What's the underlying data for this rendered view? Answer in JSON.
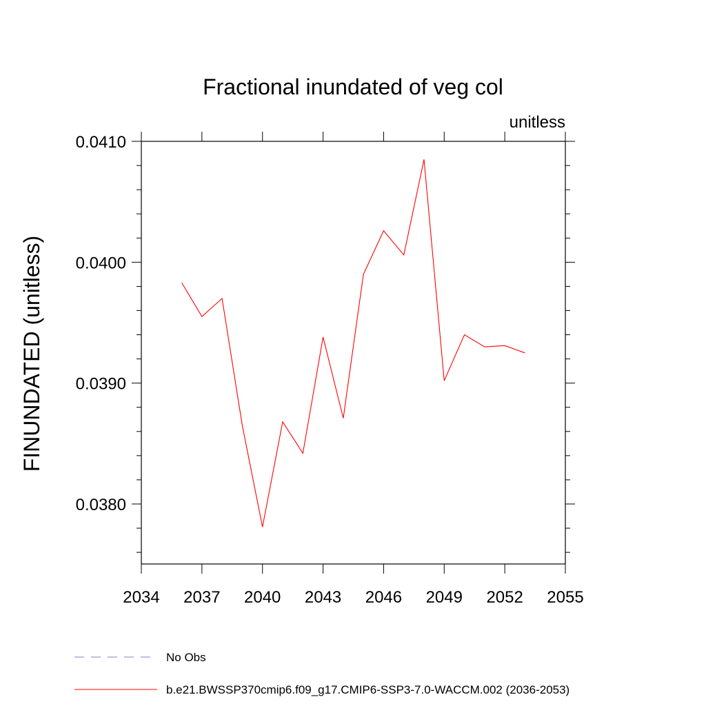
{
  "chart_data": {
    "type": "line",
    "title": "Fractional inundated of veg col",
    "units_label": "unitless",
    "xlabel": "",
    "ylabel": "FINUNDATED  (unitless)",
    "xlim": [
      2034,
      2055
    ],
    "ylim": [
      0.0375,
      0.0411
    ],
    "x_ticks": [
      2034,
      2037,
      2040,
      2043,
      2046,
      2049,
      2052,
      2055
    ],
    "x_tick_labels": [
      "2034",
      "2037",
      "2040",
      "2043",
      "2046",
      "2049",
      "2052",
      "2055"
    ],
    "y_ticks": [
      0.038,
      0.039,
      0.04,
      0.041
    ],
    "y_tick_labels": [
      "0.0380",
      "0.0390",
      "0.0400",
      "0.0410"
    ],
    "y_minor_step": 0.0002,
    "x_minor_step": 1,
    "grid": false,
    "legend_position": "bottom",
    "series": [
      {
        "name": "b.e21.BWSSP370cmip6.f09_g17.CMIP6-SSP3-7.0-WACCM.002 (2036-2053)",
        "color": "#ff0000",
        "style": "solid",
        "x": [
          2036,
          2037,
          2038,
          2039,
          2040,
          2041,
          2042,
          2043,
          2044,
          2045,
          2046,
          2047,
          2048,
          2049,
          2050,
          2051,
          2052,
          2053
        ],
        "y": [
          0.03983,
          0.03955,
          0.0397,
          0.03865,
          0.03781,
          0.03868,
          0.03842,
          0.03938,
          0.03871,
          0.0399,
          0.04026,
          0.04006,
          0.04085,
          0.03902,
          0.0394,
          0.0393,
          0.03931,
          0.03925
        ]
      }
    ],
    "legend": [
      {
        "label": "No Obs",
        "color": "#8080c0",
        "style": "dashed"
      },
      {
        "label": "b.e21.BWSSP370cmip6.f09_g17.CMIP6-SSP3-7.0-WACCM.002 (2036-2053)",
        "color": "#ff0000",
        "style": "solid"
      }
    ]
  }
}
